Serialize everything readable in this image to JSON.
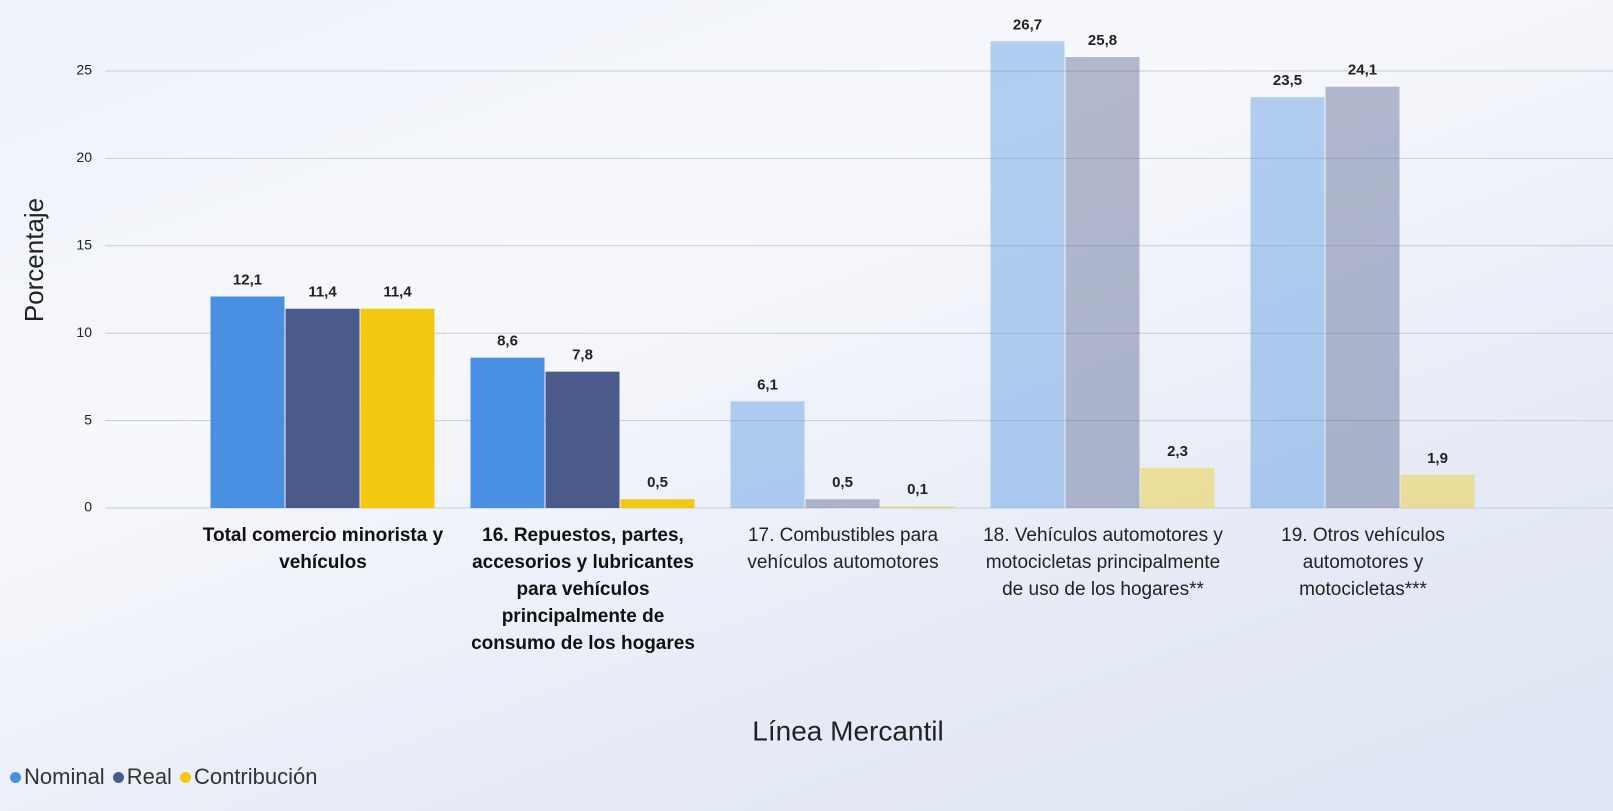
{
  "chart_data": {
    "type": "bar",
    "x_label": "Línea Mercantil",
    "y_label": "Porcentaje",
    "categories": [
      "Total comercio minorista y vehículos",
      "16. Repuestos, partes, accesorios y lubricantes para vehículos principalmente de consumo de los hogares",
      "17. Combustibles para vehículos automotores",
      "18. Vehículos automotores y motocicletas principalmente de uso de los hogares**",
      "19. Otros vehículos automotores y motocicletas***"
    ],
    "category_highlight": [
      true,
      true,
      false,
      false,
      false
    ],
    "series": [
      {
        "name": "Nominal",
        "color": "#4a90e2",
        "values": [
          12.1,
          8.6,
          6.1,
          26.7,
          23.5
        ],
        "value_labels": [
          "12,1",
          "8,6",
          "6,1",
          "26,7",
          "23,5"
        ]
      },
      {
        "name": "Real",
        "color": "#4a5a8a",
        "values": [
          11.4,
          7.8,
          0.5,
          25.8,
          24.1
        ],
        "value_labels": [
          "11,4",
          "7,8",
          "0,5",
          "25,8",
          "24,1"
        ]
      },
      {
        "name": "Contribución",
        "color": "#f2c811",
        "values": [
          11.4,
          0.5,
          0.1,
          2.3,
          1.9
        ],
        "value_labels": [
          "11,4",
          "0,5",
          "0,1",
          "2,3",
          "1,9"
        ]
      }
    ],
    "ylim": [
      0,
      28
    ],
    "yticks": [
      0,
      5,
      10,
      15,
      20,
      25
    ],
    "grid": true,
    "legend": "bottom-left"
  }
}
